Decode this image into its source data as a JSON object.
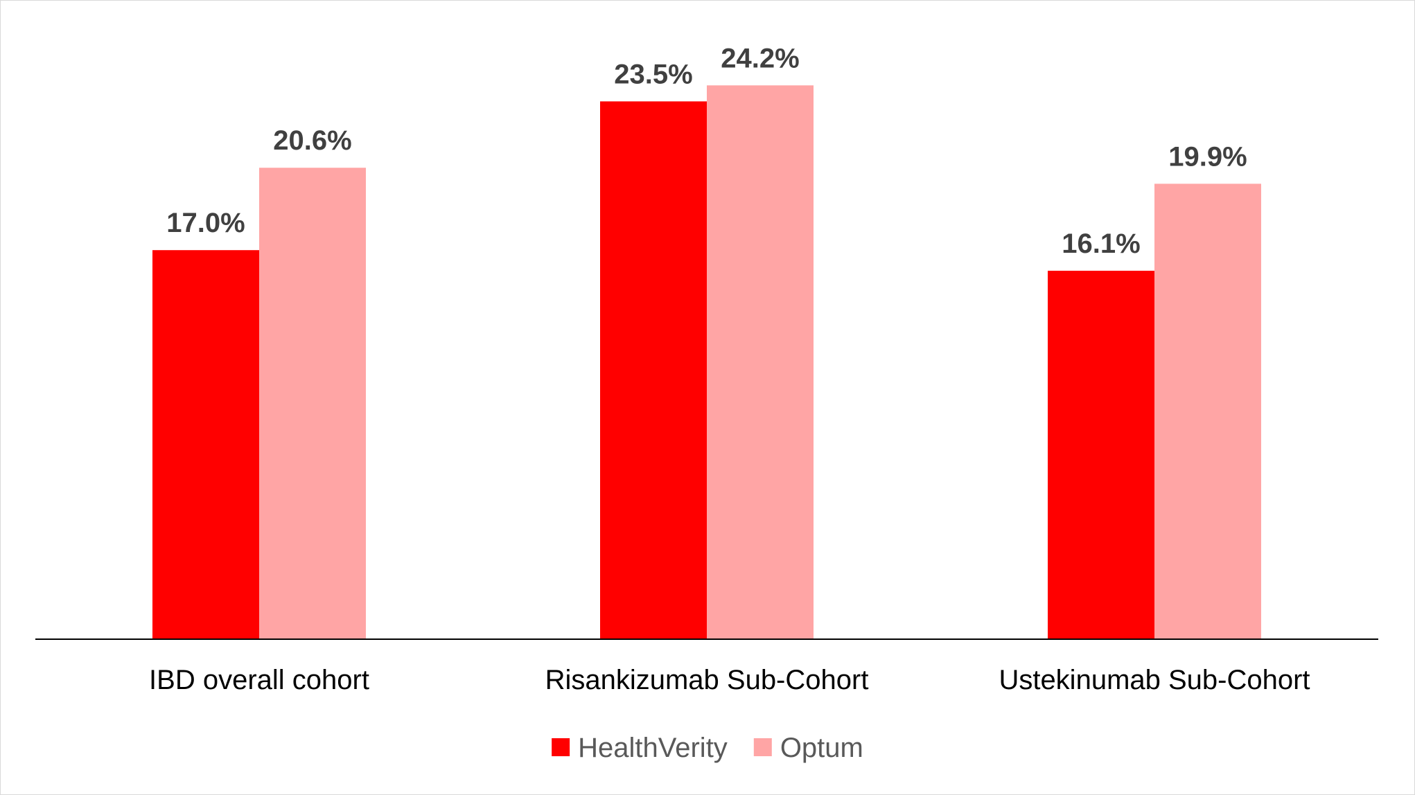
{
  "chart_data": {
    "type": "bar",
    "categories": [
      "IBD overall cohort",
      "Risankizumab Sub-Cohort",
      "Ustekinumab Sub-Cohort"
    ],
    "series": [
      {
        "name": "HealthVerity",
        "color": "#ff0000",
        "values": [
          17.0,
          23.5,
          16.1
        ],
        "labels": [
          "17.0%",
          "23.5%",
          "16.1%"
        ]
      },
      {
        "name": "Optum",
        "color": "#ffa5a5",
        "values": [
          20.6,
          24.2,
          19.9
        ],
        "labels": [
          "20.6%",
          "24.2%",
          "19.9%"
        ]
      }
    ],
    "ylim": [
      0,
      27.9
    ],
    "grid": false,
    "y_axis_visible": false,
    "legend_position": "bottom"
  }
}
